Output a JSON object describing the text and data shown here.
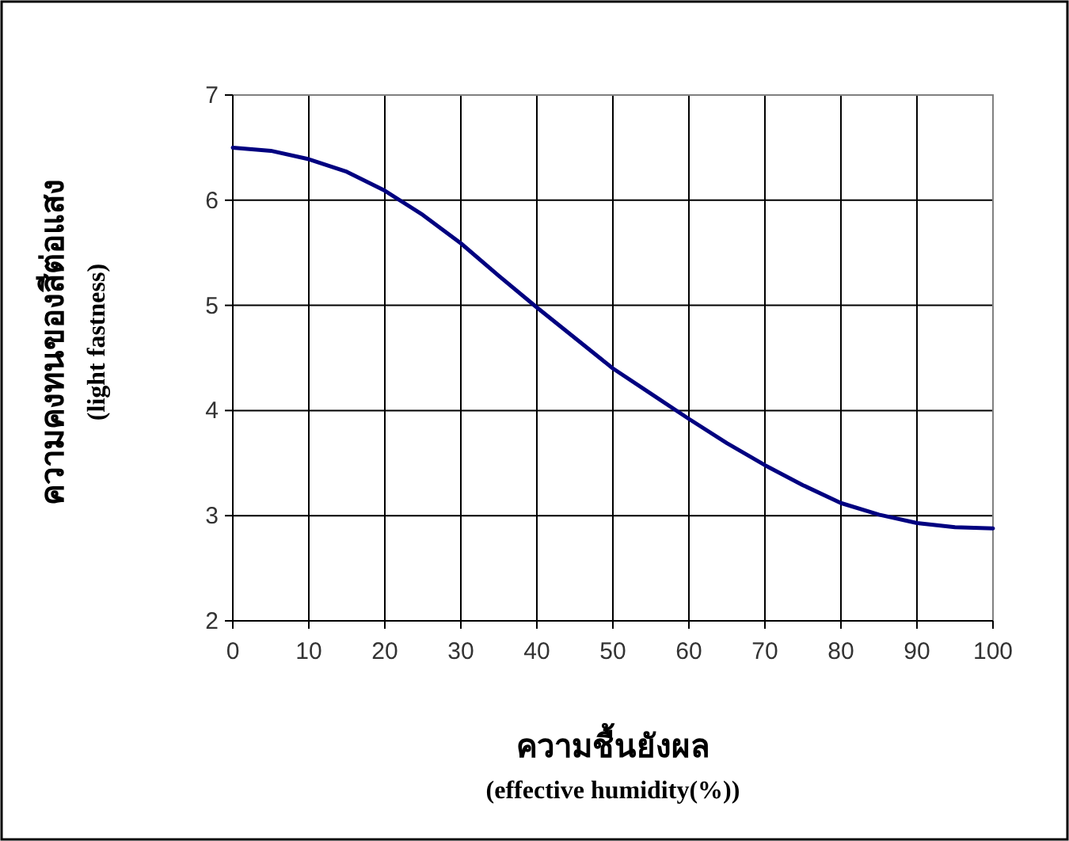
{
  "chart_data": {
    "type": "line",
    "xlabel": "ความชื้นยังผล\n(effective humidity(%))",
    "ylabel": "ความคงทนของสีต่อแสง\n(light fastness)",
    "x": [
      0,
      5,
      10,
      15,
      20,
      25,
      30,
      35,
      40,
      45,
      50,
      55,
      60,
      65,
      70,
      75,
      80,
      85,
      90,
      95,
      100
    ],
    "series": [
      {
        "color": "#000080",
        "values": [
          6.5,
          6.47,
          6.39,
          6.27,
          6.09,
          5.86,
          5.59,
          5.28,
          4.98,
          4.69,
          4.4,
          4.16,
          3.92,
          3.69,
          3.48,
          3.29,
          3.12,
          3.01,
          2.93,
          2.89,
          2.88
        ]
      }
    ],
    "xlim": [
      0,
      100
    ],
    "xticks": [
      0,
      10,
      20,
      30,
      40,
      50,
      60,
      70,
      80,
      90,
      100
    ],
    "ylim": [
      2,
      7
    ],
    "yticks": [
      2,
      3,
      4,
      5,
      6,
      7
    ],
    "grid": true,
    "marker": "none",
    "line_style": "solid"
  }
}
